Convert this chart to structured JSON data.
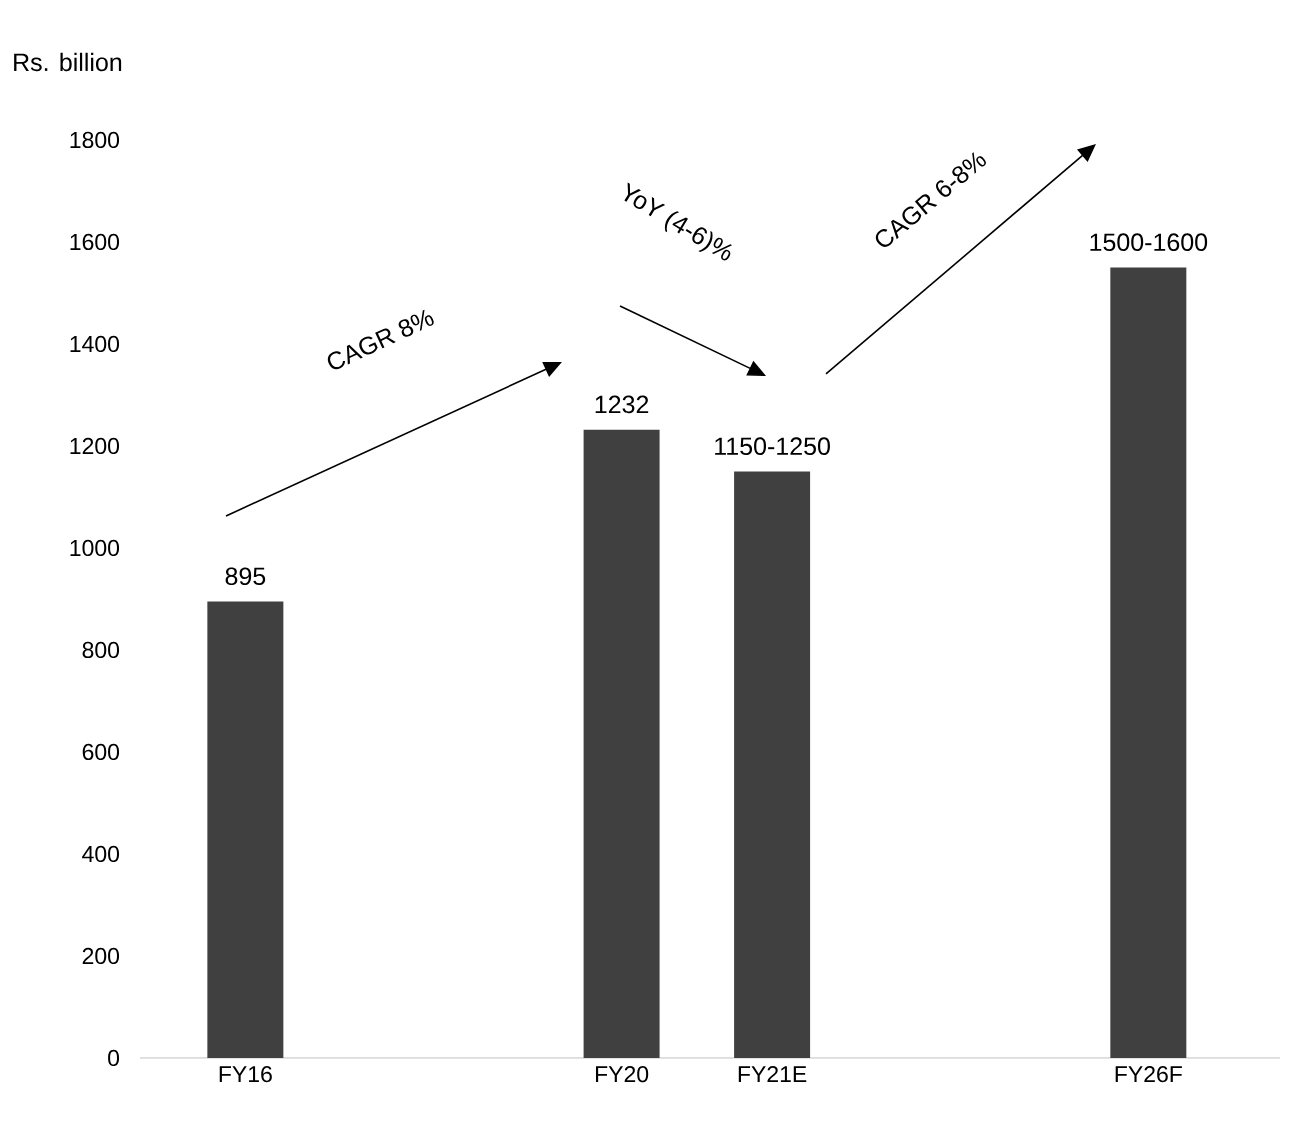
{
  "chart_data": {
    "type": "bar",
    "ylabel": "Rs. billion",
    "categories": [
      "FY16",
      null,
      null,
      null,
      null,
      "FY20",
      null,
      "FY21E",
      null,
      null,
      null,
      null,
      "FY26F"
    ],
    "values": [
      895,
      null,
      null,
      null,
      null,
      1232,
      null,
      1150,
      null,
      null,
      null,
      null,
      1550
    ],
    "value_labels": [
      "895",
      null,
      null,
      null,
      null,
      "1232",
      null,
      "1150-1250",
      null,
      null,
      null,
      null,
      "1500-1600"
    ],
    "color": "#404040",
    "ylim": [
      0,
      1800
    ],
    "yticks": [
      0,
      200,
      400,
      600,
      800,
      1000,
      1200,
      1400,
      1600,
      1800
    ],
    "annotations": [
      "CAGR 8%",
      "YoY (4-6)%",
      "CAGR 6-8%"
    ]
  }
}
